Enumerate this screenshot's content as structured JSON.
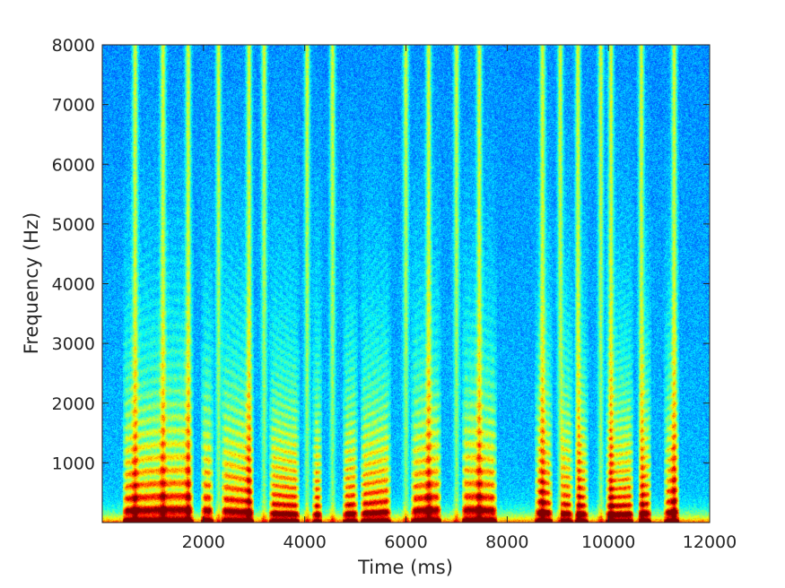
{
  "chart_data": {
    "type": "heatmap",
    "subtype": "spectrogram",
    "title": "",
    "xlabel": "Time (ms)",
    "ylabel": "Frequency (Hz)",
    "xlim": [
      0,
      12000
    ],
    "ylim": [
      0,
      8000
    ],
    "x_ticks": [
      2000,
      4000,
      6000,
      8000,
      10000,
      12000
    ],
    "y_ticks": [
      1000,
      2000,
      3000,
      4000,
      5000,
      6000,
      7000,
      8000
    ],
    "colormap": "jet",
    "colors": {
      "low": "#10c8e0",
      "mid": "#f0f020",
      "high": "#e02010",
      "max": "#a00000"
    },
    "grid": false,
    "legend": "none",
    "vertical_bursts_ms": [
      650,
      1200,
      1700,
      2300,
      2900,
      3200,
      4050,
      4550,
      6000,
      6450,
      7000,
      7450,
      8700,
      9050,
      9400,
      9850,
      10050,
      10650,
      11300
    ],
    "voiced_segments_ms": [
      [
        400,
        1800
      ],
      [
        1950,
        2200
      ],
      [
        2350,
        3000
      ],
      [
        3300,
        3900
      ],
      [
        4150,
        4350
      ],
      [
        4750,
        5050
      ],
      [
        5100,
        5700
      ],
      [
        6100,
        6700
      ],
      [
        7100,
        7800
      ],
      [
        8550,
        8900
      ],
      [
        9050,
        9300
      ],
      [
        9350,
        9600
      ],
      [
        9950,
        10500
      ],
      [
        10600,
        10850
      ],
      [
        11100,
        11400
      ]
    ]
  }
}
